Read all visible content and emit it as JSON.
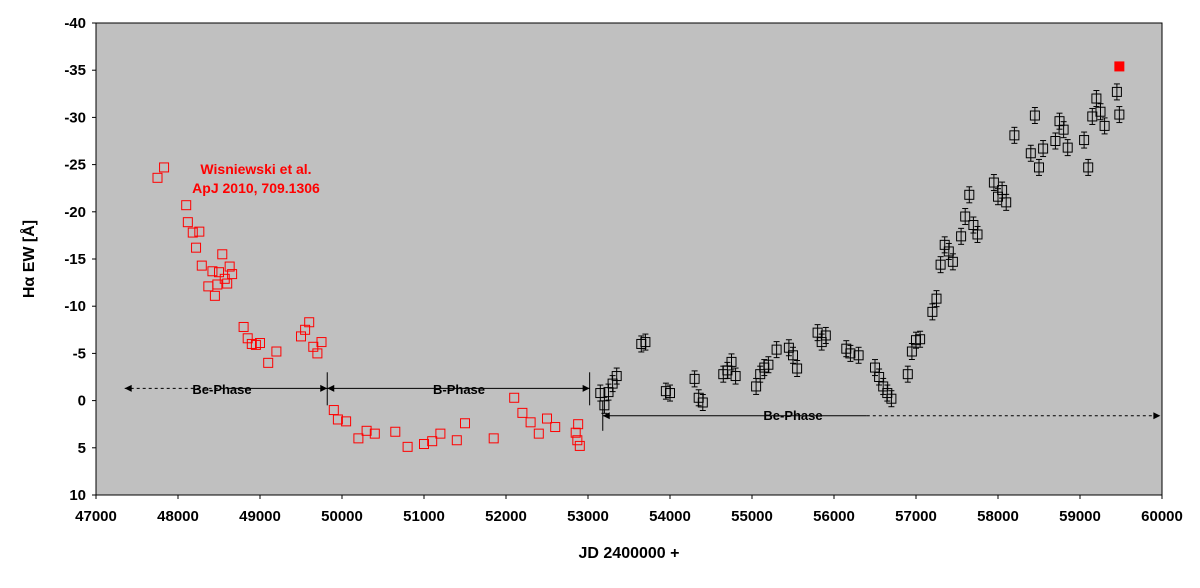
{
  "chart_data": {
    "type": "scatter",
    "xlabel": "JD 2400000 +",
    "ylabel": "Hα EW [Å]",
    "xlim": [
      47000,
      60000
    ],
    "ylim": [
      10,
      -40
    ],
    "y_inverted": true,
    "grid": false,
    "plot_background": "#c0c0c0",
    "x_ticks": [
      "47000",
      "48000",
      "49000",
      "50000",
      "51000",
      "52000",
      "53000",
      "54000",
      "55000",
      "56000",
      "57000",
      "58000",
      "59000",
      "60000"
    ],
    "y_ticks": [
      "-40",
      "-35",
      "-30",
      "-25",
      "-20",
      "-15",
      "-10",
      "-5",
      "0",
      "5",
      "10"
    ],
    "marker": "open-square",
    "annotations": {
      "reference_line1": "Wisniewski et al.",
      "reference_line2": "ApJ 2010, 709.1306",
      "phase_1": "Be-Phase",
      "phase_2": "B-Phase",
      "phase_3": "Be-Phase"
    },
    "phase_arrows": [
      {
        "label": "Be-Phase",
        "from": 47350,
        "to": 49820,
        "y": -1.3,
        "dashed_part": [
          47350,
          48600
        ]
      },
      {
        "label": "B-Phase",
        "from": 49820,
        "to": 53020,
        "y": -1.3
      },
      {
        "label": "Be-Phase",
        "from": 53180,
        "to": 59980,
        "y": 1.6,
        "dashed_part": [
          56400,
          59980
        ]
      }
    ],
    "phase_boundaries": [
      49820,
      53020
    ],
    "series": [
      {
        "color": "#ff0000",
        "filled": false,
        "x": [
          47750,
          47830,
          48100,
          48120,
          48180,
          48220,
          48260,
          48290,
          48370,
          48420,
          48450,
          48480,
          48500,
          48540,
          48570,
          48600,
          48630,
          48660,
          48800,
          48850,
          48900,
          48950,
          49000,
          49100,
          49200,
          49500,
          49550,
          49600,
          49650,
          49700,
          49750,
          49900,
          49950,
          50050,
          50200,
          50300,
          50400,
          50650,
          50800,
          51000,
          51100,
          51200,
          51400,
          51500,
          51850,
          52100,
          52200,
          52300,
          52400,
          52500,
          52600,
          52850,
          52870,
          52880,
          52900
        ],
        "y": [
          -23.6,
          -24.7,
          -20.7,
          -18.9,
          -17.8,
          -16.2,
          -17.9,
          -14.3,
          -12.1,
          -13.7,
          -11.1,
          -12.3,
          -13.6,
          -15.5,
          -12.9,
          -12.4,
          -14.2,
          -13.4,
          -7.8,
          -6.6,
          -6.0,
          -5.9,
          -6.1,
          -4.0,
          -5.2,
          -6.8,
          -7.5,
          -8.3,
          -5.7,
          -5.0,
          -6.2,
          1.0,
          2.0,
          2.2,
          4.0,
          3.2,
          3.5,
          3.3,
          4.9,
          4.6,
          4.3,
          3.5,
          4.2,
          2.4,
          4.0,
          -0.3,
          1.3,
          2.3,
          3.5,
          1.9,
          2.8,
          3.4,
          4.2,
          2.5,
          4.8
        ]
      },
      {
        "color": "#000000",
        "filled": false,
        "x": [
          53150,
          53200,
          53250,
          53300,
          53350,
          53650,
          53700,
          53950,
          54000,
          54300,
          54350,
          54400,
          54650,
          54700,
          54750,
          54800,
          55050,
          55100,
          55150,
          55200,
          55300,
          55450,
          55500,
          55550,
          55800,
          55850,
          55900,
          56150,
          56200,
          56300,
          56500,
          56550,
          56600,
          56650,
          56700,
          56900,
          56950,
          57000,
          57050,
          57200,
          57250,
          57300,
          57350,
          57400,
          57450,
          57550,
          57600,
          57650,
          57700,
          57750,
          57950,
          58000,
          58050,
          58100,
          58200,
          58400,
          58450,
          58500,
          58550,
          58700,
          58750,
          58800,
          58850,
          59050,
          59100,
          59150,
          59200,
          59250,
          59300,
          59450,
          59480
        ],
        "y": [
          -0.8,
          0.5,
          -0.9,
          -1.8,
          -2.6,
          -6.0,
          -6.2,
          -1.0,
          -0.8,
          -2.3,
          -0.3,
          0.2,
          -2.8,
          -3.2,
          -4.1,
          -2.6,
          -1.5,
          -2.8,
          -3.5,
          -3.8,
          -5.4,
          -5.6,
          -4.8,
          -3.4,
          -7.2,
          -6.2,
          -6.9,
          -5.5,
          -5.0,
          -4.8,
          -3.5,
          -2.5,
          -1.5,
          -0.8,
          -0.2,
          -2.8,
          -5.2,
          -6.4,
          -6.5,
          -9.4,
          -10.8,
          -14.4,
          -16.5,
          -15.8,
          -14.7,
          -17.4,
          -19.5,
          -21.8,
          -18.6,
          -17.6,
          -23.1,
          -21.6,
          -22.3,
          -21.0,
          -28.1,
          -26.2,
          -30.2,
          -24.7,
          -26.7,
          -27.5,
          -29.6,
          -28.7,
          -26.8,
          -27.6,
          -24.7,
          -30.1,
          -32.0,
          -30.6,
          -29.1,
          -32.7,
          -30.3
        ]
      },
      {
        "color": "#ff0000",
        "filled": true,
        "x": [
          59480
        ],
        "y": [
          -35.4
        ]
      }
    ]
  }
}
